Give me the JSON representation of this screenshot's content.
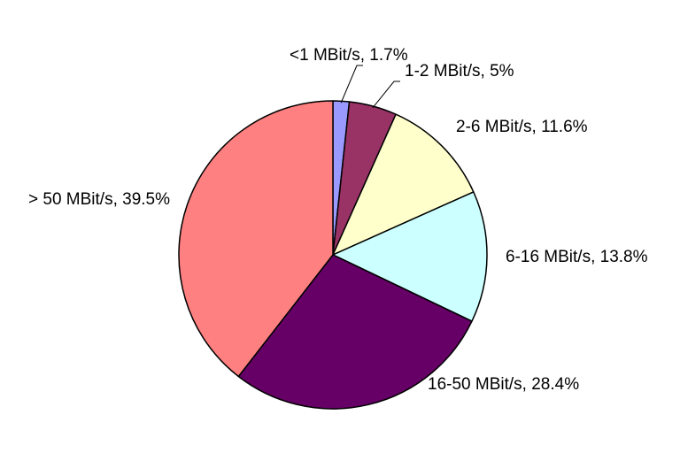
{
  "chart_data": {
    "type": "pie",
    "start": "top",
    "direction": "clockwise",
    "legend": "none",
    "slices": [
      {
        "label": "<1 MBit/s, 1.7%",
        "value": 1.7,
        "color": "#9999FF"
      },
      {
        "label": "1-2 MBit/s, 5%",
        "value": 5,
        "color": "#993366"
      },
      {
        "label": "2-6 MBit/s, 11.6%",
        "value": 11.6,
        "color": "#FFFFCC"
      },
      {
        "label": "6-16 MBit/s, 13.8%",
        "value": 13.8,
        "color": "#CCFFFF"
      },
      {
        "label": "16-50 MBit/s, 28.4%",
        "value": 28.4,
        "color": "#660066"
      },
      {
        "label": "> 50 MBit/s, 39.5%",
        "value": 39.5,
        "color": "#FF8080"
      }
    ]
  }
}
